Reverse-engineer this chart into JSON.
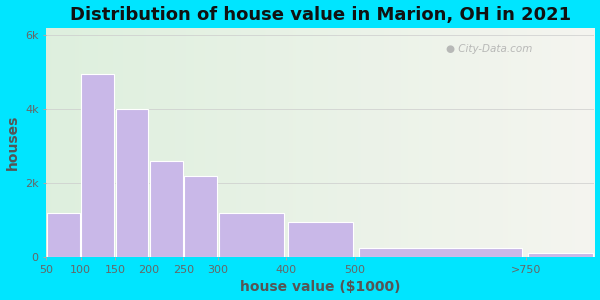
{
  "title": "Distribution of house value in Marion, OH in 2021",
  "xlabel": "house value ($1000)",
  "ylabel": "houses",
  "bar_lefts": [
    50,
    100,
    150,
    200,
    250,
    300,
    400,
    500,
    750
  ],
  "bar_widths": [
    50,
    50,
    50,
    50,
    50,
    100,
    100,
    250,
    100
  ],
  "bar_values": [
    1200,
    4950,
    4000,
    2600,
    2200,
    1200,
    950,
    250,
    120
  ],
  "xtick_positions": [
    50,
    100,
    150,
    200,
    250,
    300,
    400,
    500,
    750
  ],
  "xtick_labels": [
    "50",
    "100",
    "150",
    "200",
    "250",
    "300",
    "400",
    "500",
    ">750"
  ],
  "bar_color": "#c9b8e8",
  "bar_edge_color": "#ffffff",
  "background_outer": "#00e5ff",
  "ylim": [
    0,
    6200
  ],
  "yticks": [
    0,
    2000,
    4000,
    6000
  ],
  "ytick_labels": [
    "0",
    "2k",
    "4k",
    "6k"
  ],
  "watermark": " City-Data.com",
  "title_fontsize": 13,
  "axis_label_fontsize": 10,
  "tick_fontsize": 8,
  "tick_color": "#666666",
  "label_color": "#555555"
}
